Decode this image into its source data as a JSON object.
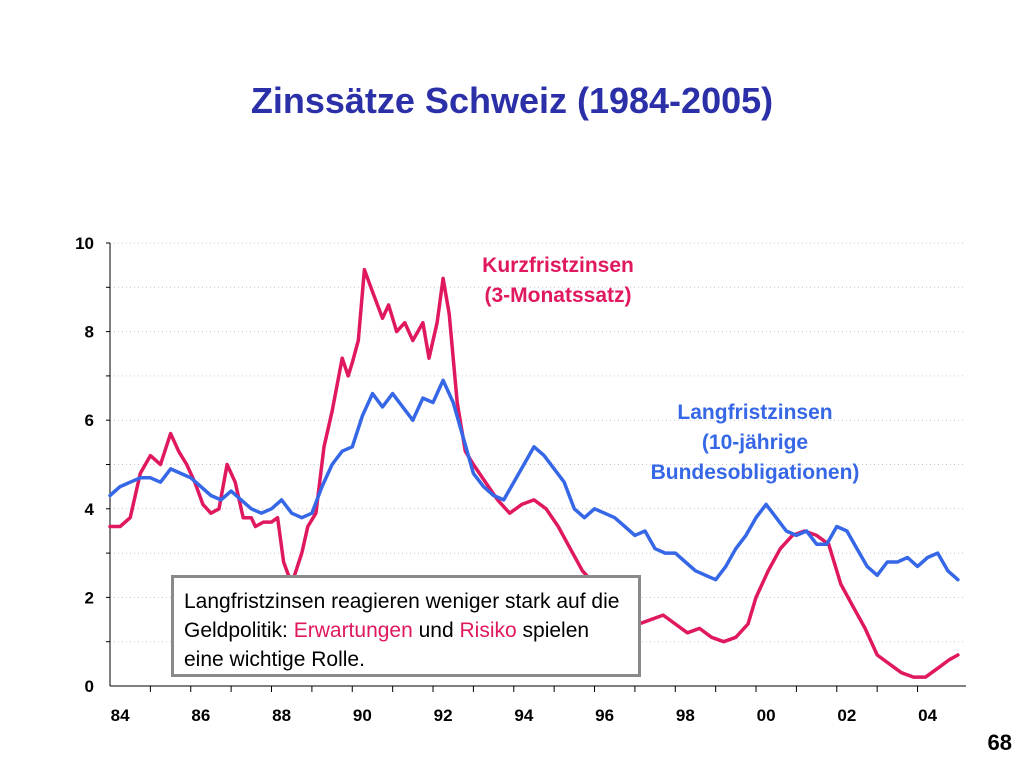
{
  "slide": {
    "title": "Zinssätze Schweiz (1984-2005)",
    "page_number": "68"
  },
  "callout": {
    "part1": "Langfristzinsen reagieren weniger stark auf die Geldpolitik: ",
    "highlight1": "Erwartungen",
    "part2": " und ",
    "highlight2": "Risiko",
    "part3": " spielen eine wichtige Rolle."
  },
  "chart_data": {
    "type": "line",
    "title": "",
    "xlabel": "",
    "ylabel": "",
    "xlim": [
      1984,
      2005
    ],
    "ylim": [
      0,
      10
    ],
    "grid": true,
    "y_ticks": [
      0,
      2,
      4,
      6,
      8,
      10
    ],
    "x_tick_labels": [
      "84",
      "86",
      "88",
      "90",
      "92",
      "94",
      "96",
      "98",
      "00",
      "02",
      "04"
    ],
    "x_tick_years": [
      1984,
      1986,
      1988,
      1990,
      1992,
      1994,
      1996,
      1998,
      2000,
      2002,
      2004
    ],
    "series": [
      {
        "name": "Kurzfristzinsen (3-Monatssatz)",
        "name_lines": [
          "Kurzfristzinsen",
          "(3-Monatssatz)"
        ],
        "color": "#e0185f",
        "x": [
          1984.0,
          1984.25,
          1984.5,
          1984.75,
          1985.0,
          1985.25,
          1985.5,
          1985.7,
          1985.9,
          1986.1,
          1986.3,
          1986.5,
          1986.7,
          1986.9,
          1987.1,
          1987.3,
          1987.5,
          1987.6,
          1987.8,
          1988.0,
          1988.15,
          1988.3,
          1988.5,
          1988.75,
          1988.9,
          1989.1,
          1989.3,
          1989.5,
          1989.75,
          1989.9,
          1990.0,
          1990.15,
          1990.3,
          1990.5,
          1990.75,
          1990.9,
          1991.1,
          1991.3,
          1991.5,
          1991.75,
          1991.9,
          1992.1,
          1992.25,
          1992.4,
          1992.6,
          1992.8,
          1993.0,
          1993.3,
          1993.6,
          1993.9,
          1994.2,
          1994.5,
          1994.8,
          1995.1,
          1995.4,
          1995.7,
          1995.9,
          1996.2,
          1996.5,
          1996.8,
          1997.1,
          1997.4,
          1997.7,
          1998.0,
          1998.3,
          1998.6,
          1998.9,
          1999.2,
          1999.5,
          1999.8,
          2000.0,
          2000.3,
          2000.6,
          2000.9,
          2001.2,
          2001.5,
          2001.8,
          2002.1,
          2002.4,
          2002.7,
          2003.0,
          2003.3,
          2003.6,
          2003.9,
          2004.2,
          2004.5,
          2004.8,
          2005.0
        ],
        "values": [
          3.6,
          3.6,
          3.8,
          4.8,
          5.2,
          5.0,
          5.7,
          5.3,
          5.0,
          4.6,
          4.1,
          3.9,
          4.0,
          5.0,
          4.6,
          3.8,
          3.8,
          3.6,
          3.7,
          3.7,
          3.8,
          2.8,
          2.3,
          3.0,
          3.6,
          3.9,
          5.4,
          6.2,
          7.4,
          7.0,
          7.3,
          7.8,
          9.4,
          8.9,
          8.3,
          8.6,
          8.0,
          8.2,
          7.8,
          8.2,
          7.4,
          8.2,
          9.2,
          8.4,
          6.4,
          5.3,
          5.0,
          4.6,
          4.2,
          3.9,
          4.1,
          4.2,
          4.0,
          3.6,
          3.1,
          2.6,
          2.4,
          2.3,
          2.0,
          1.7,
          1.4,
          1.5,
          1.6,
          1.4,
          1.2,
          1.3,
          1.1,
          1.0,
          1.1,
          1.4,
          2.0,
          2.6,
          3.1,
          3.4,
          3.5,
          3.4,
          3.2,
          2.3,
          1.8,
          1.3,
          0.7,
          0.5,
          0.3,
          0.2,
          0.2,
          0.4,
          0.6,
          0.7
        ]
      },
      {
        "name": "Langfristzinsen (10-jährige Bundesobligationen)",
        "name_lines": [
          "Langfristzinsen",
          "(10-jährige",
          "Bundesobligationen)"
        ],
        "color": "#3567e6",
        "x": [
          1984.0,
          1984.25,
          1984.5,
          1984.75,
          1985.0,
          1985.25,
          1985.5,
          1985.75,
          1986.0,
          1986.25,
          1986.5,
          1986.75,
          1987.0,
          1987.25,
          1987.5,
          1987.75,
          1988.0,
          1988.25,
          1988.5,
          1988.75,
          1989.0,
          1989.25,
          1989.5,
          1989.75,
          1990.0,
          1990.25,
          1990.5,
          1990.75,
          1991.0,
          1991.25,
          1991.5,
          1991.75,
          1992.0,
          1992.25,
          1992.5,
          1992.75,
          1993.0,
          1993.25,
          1993.5,
          1993.75,
          1994.0,
          1994.25,
          1994.5,
          1994.75,
          1995.0,
          1995.25,
          1995.5,
          1995.75,
          1996.0,
          1996.25,
          1996.5,
          1996.75,
          1997.0,
          1997.25,
          1997.5,
          1997.75,
          1998.0,
          1998.25,
          1998.5,
          1998.75,
          1999.0,
          1999.25,
          1999.5,
          1999.75,
          2000.0,
          2000.25,
          2000.5,
          2000.75,
          2001.0,
          2001.25,
          2001.5,
          2001.75,
          2002.0,
          2002.25,
          2002.5,
          2002.75,
          2003.0,
          2003.25,
          2003.5,
          2003.75,
          2004.0,
          2004.25,
          2004.5,
          2004.75,
          2005.0
        ],
        "values": [
          4.3,
          4.5,
          4.6,
          4.7,
          4.7,
          4.6,
          4.9,
          4.8,
          4.7,
          4.5,
          4.3,
          4.2,
          4.4,
          4.2,
          4.0,
          3.9,
          4.0,
          4.2,
          3.9,
          3.8,
          3.9,
          4.5,
          5.0,
          5.3,
          5.4,
          6.1,
          6.6,
          6.3,
          6.6,
          6.3,
          6.0,
          6.5,
          6.4,
          6.9,
          6.4,
          5.6,
          4.8,
          4.5,
          4.3,
          4.2,
          4.6,
          5.0,
          5.4,
          5.2,
          4.9,
          4.6,
          4.0,
          3.8,
          4.0,
          3.9,
          3.8,
          3.6,
          3.4,
          3.5,
          3.1,
          3.0,
          3.0,
          2.8,
          2.6,
          2.5,
          2.4,
          2.7,
          3.1,
          3.4,
          3.8,
          4.1,
          3.8,
          3.5,
          3.4,
          3.5,
          3.2,
          3.2,
          3.6,
          3.5,
          3.1,
          2.7,
          2.5,
          2.8,
          2.8,
          2.9,
          2.7,
          2.9,
          3.0,
          2.6,
          2.4
        ]
      }
    ]
  }
}
